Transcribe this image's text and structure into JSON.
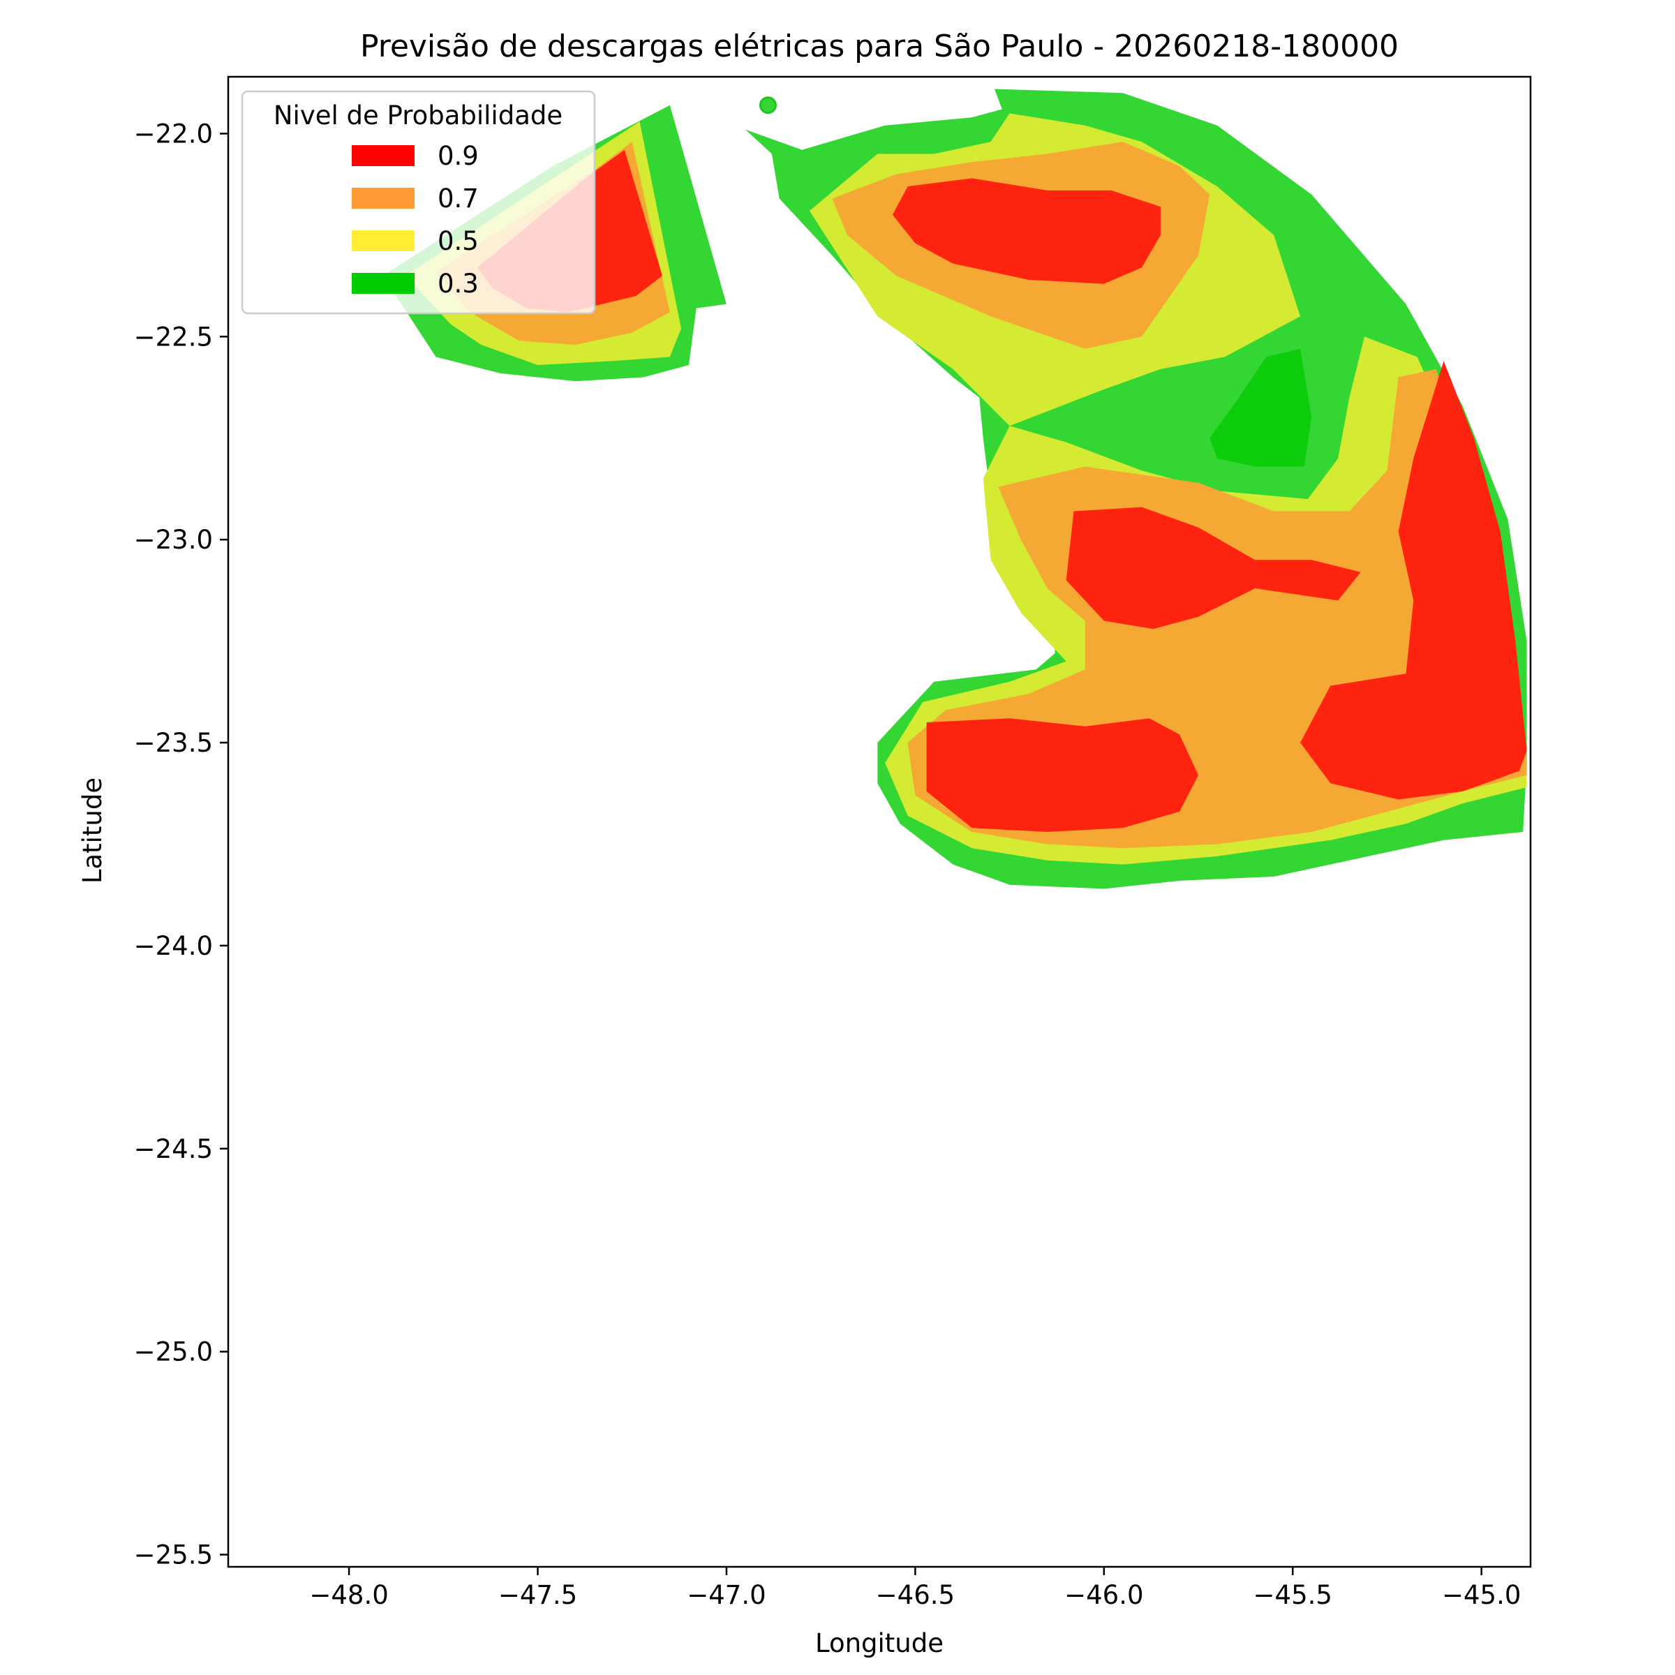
{
  "chart_data": {
    "type": "heatmap",
    "title": "Previsão de descargas elétricas para São Paulo - 20260218-180000",
    "xlabel": "Longitude",
    "ylabel": "Latitude",
    "xlim": [
      -48.32,
      -44.87
    ],
    "ylim": [
      -25.53,
      -21.86
    ],
    "x_ticks": [
      -48.0,
      -47.5,
      -47.0,
      -46.5,
      -46.0,
      -45.5,
      -45.0
    ],
    "x_tick_labels": [
      "−48.0",
      "−47.5",
      "−47.0",
      "−46.5",
      "−46.0",
      "−45.5",
      "−45.0"
    ],
    "y_ticks": [
      -22.0,
      -22.5,
      -23.0,
      -23.5,
      -24.0,
      -24.5,
      -25.0,
      -25.5
    ],
    "y_tick_labels": [
      "−22.0",
      "−22.5",
      "−23.0",
      "−23.5",
      "−24.0",
      "−24.5",
      "−25.0",
      "−25.5"
    ],
    "grid": false,
    "legend": {
      "title": "Nivel de Probabilidade",
      "placement": "upper-left",
      "entries": [
        {
          "label": "0.9",
          "color": "#ff0000"
        },
        {
          "label": "0.7",
          "color": "#ff9933"
        },
        {
          "label": "0.5",
          "color": "#ffee33"
        },
        {
          "label": "0.3",
          "color": "#00cc00"
        }
      ]
    },
    "fill_colors": {
      "0.3": "#33d633",
      "0.3_core": "#0ccc0c",
      "0.5": "#d4ea33",
      "0.7": "#f5a833",
      "0.9": "#ff2410"
    },
    "regions": [
      {
        "level": "0.3",
        "name": "nw-cell",
        "coords": [
          [
            -47.91,
            -22.35
          ],
          [
            -47.46,
            -22.08
          ],
          [
            -47.15,
            -21.93
          ],
          [
            -47.0,
            -22.42
          ],
          [
            -47.08,
            -22.43
          ],
          [
            -47.1,
            -22.57
          ],
          [
            -47.22,
            -22.6
          ],
          [
            -47.4,
            -22.61
          ],
          [
            -47.6,
            -22.59
          ],
          [
            -47.77,
            -22.55
          ]
        ]
      },
      {
        "level": "0.5",
        "name": "nw-cell",
        "coords": [
          [
            -47.85,
            -22.35
          ],
          [
            -47.41,
            -22.08
          ],
          [
            -47.23,
            -21.97
          ],
          [
            -47.12,
            -22.48
          ],
          [
            -47.15,
            -22.55
          ],
          [
            -47.3,
            -22.56
          ],
          [
            -47.5,
            -22.57
          ],
          [
            -47.65,
            -22.52
          ],
          [
            -47.73,
            -22.47
          ]
        ]
      },
      {
        "level": "0.7",
        "name": "nw-cell",
        "coords": [
          [
            -47.77,
            -22.34
          ],
          [
            -47.35,
            -22.09
          ],
          [
            -47.25,
            -22.02
          ],
          [
            -47.15,
            -22.44
          ],
          [
            -47.25,
            -22.49
          ],
          [
            -47.4,
            -22.52
          ],
          [
            -47.55,
            -22.51
          ],
          [
            -47.68,
            -22.44
          ]
        ]
      },
      {
        "level": "0.9",
        "name": "nw-cell",
        "coords": [
          [
            -47.66,
            -22.33
          ],
          [
            -47.36,
            -22.1
          ],
          [
            -47.27,
            -22.04
          ],
          [
            -47.17,
            -22.35
          ],
          [
            -47.24,
            -22.4
          ],
          [
            -47.42,
            -22.44
          ],
          [
            -47.53,
            -22.43
          ],
          [
            -47.62,
            -22.38
          ]
        ]
      },
      {
        "level": "0.3",
        "name": "e-cell",
        "coords": [
          [
            -46.95,
            -21.99
          ],
          [
            -46.8,
            -22.04
          ],
          [
            -46.58,
            -21.98
          ],
          [
            -46.35,
            -21.96
          ],
          [
            -46.27,
            -21.94
          ],
          [
            -46.29,
            -21.89
          ],
          [
            -45.95,
            -21.9
          ],
          [
            -45.7,
            -21.98
          ],
          [
            -45.45,
            -22.15
          ],
          [
            -45.2,
            -22.42
          ],
          [
            -45.05,
            -22.67
          ],
          [
            -44.93,
            -22.95
          ],
          [
            -44.88,
            -23.25
          ],
          [
            -44.88,
            -23.55
          ],
          [
            -44.89,
            -23.72
          ],
          [
            -45.1,
            -23.74
          ],
          [
            -45.3,
            -23.78
          ],
          [
            -45.55,
            -23.83
          ],
          [
            -45.8,
            -23.84
          ],
          [
            -46.0,
            -23.86
          ],
          [
            -46.25,
            -23.85
          ],
          [
            -46.4,
            -23.8
          ],
          [
            -46.54,
            -23.7
          ],
          [
            -46.6,
            -23.6
          ],
          [
            -46.6,
            -23.5
          ],
          [
            -46.45,
            -23.35
          ],
          [
            -46.18,
            -23.32
          ],
          [
            -46.13,
            -23.28
          ],
          [
            -46.13,
            -23.17
          ],
          [
            -46.2,
            -23.12
          ],
          [
            -46.25,
            -23.02
          ],
          [
            -46.3,
            -22.9
          ],
          [
            -46.32,
            -22.75
          ],
          [
            -46.33,
            -22.65
          ],
          [
            -46.4,
            -22.6
          ],
          [
            -46.58,
            -22.45
          ],
          [
            -46.72,
            -22.3
          ],
          [
            -46.86,
            -22.16
          ],
          [
            -46.88,
            -22.05
          ]
        ]
      },
      {
        "level": "0.5",
        "name": "e-cell",
        "coords": [
          [
            -46.78,
            -22.19
          ],
          [
            -46.6,
            -22.05
          ],
          [
            -46.45,
            -22.05
          ],
          [
            -46.3,
            -22.02
          ],
          [
            -46.25,
            -21.95
          ],
          [
            -46.05,
            -21.98
          ],
          [
            -45.9,
            -22.02
          ],
          [
            -45.7,
            -22.13
          ],
          [
            -45.55,
            -22.25
          ],
          [
            -45.48,
            -22.45
          ],
          [
            -45.68,
            -22.55
          ],
          [
            -45.85,
            -22.58
          ],
          [
            -46.0,
            -22.63
          ],
          [
            -46.25,
            -22.72
          ],
          [
            -46.32,
            -22.85
          ],
          [
            -46.3,
            -23.05
          ],
          [
            -46.22,
            -23.18
          ],
          [
            -46.1,
            -23.3
          ],
          [
            -46.25,
            -23.35
          ],
          [
            -46.48,
            -23.4
          ],
          [
            -46.58,
            -23.55
          ],
          [
            -46.52,
            -23.68
          ],
          [
            -46.35,
            -23.76
          ],
          [
            -46.15,
            -23.79
          ],
          [
            -45.95,
            -23.8
          ],
          [
            -45.7,
            -23.78
          ],
          [
            -45.4,
            -23.74
          ],
          [
            -45.2,
            -23.7
          ],
          [
            -45.05,
            -23.65
          ],
          [
            -44.88,
            -23.61
          ],
          [
            -44.88,
            -23.55
          ],
          [
            -44.92,
            -23.3
          ],
          [
            -44.98,
            -23.05
          ],
          [
            -45.05,
            -22.8
          ],
          [
            -45.17,
            -22.55
          ],
          [
            -45.31,
            -22.5
          ],
          [
            -45.35,
            -22.65
          ],
          [
            -45.38,
            -22.8
          ],
          [
            -45.46,
            -22.9
          ],
          [
            -45.7,
            -22.88
          ],
          [
            -45.9,
            -22.83
          ],
          [
            -46.1,
            -22.76
          ],
          [
            -46.25,
            -22.72
          ],
          [
            -46.4,
            -22.58
          ],
          [
            -46.6,
            -22.45
          ]
        ]
      },
      {
        "level": "0.7",
        "name": "e-cell",
        "coords": [
          [
            -46.72,
            -22.16
          ],
          [
            -46.55,
            -22.1
          ],
          [
            -46.35,
            -22.07
          ],
          [
            -46.15,
            -22.05
          ],
          [
            -45.95,
            -22.02
          ],
          [
            -45.8,
            -22.08
          ],
          [
            -45.72,
            -22.15
          ],
          [
            -45.75,
            -22.3
          ],
          [
            -45.9,
            -22.5
          ],
          [
            -46.05,
            -22.53
          ],
          [
            -46.3,
            -22.45
          ],
          [
            -46.55,
            -22.35
          ],
          [
            -46.68,
            -22.25
          ]
        ]
      },
      {
        "level": "0.7",
        "name": "e-cell",
        "coords": [
          [
            -46.28,
            -22.87
          ],
          [
            -46.05,
            -22.82
          ],
          [
            -45.75,
            -22.86
          ],
          [
            -45.55,
            -22.93
          ],
          [
            -45.35,
            -22.93
          ],
          [
            -45.25,
            -22.83
          ],
          [
            -45.22,
            -22.6
          ],
          [
            -45.12,
            -22.58
          ],
          [
            -45.05,
            -22.8
          ],
          [
            -44.97,
            -23.05
          ],
          [
            -44.91,
            -23.3
          ],
          [
            -44.88,
            -23.55
          ],
          [
            -44.88,
            -23.58
          ],
          [
            -45.05,
            -23.62
          ],
          [
            -45.25,
            -23.67
          ],
          [
            -45.45,
            -23.72
          ],
          [
            -45.7,
            -23.75
          ],
          [
            -45.95,
            -23.76
          ],
          [
            -46.15,
            -23.75
          ],
          [
            -46.35,
            -23.72
          ],
          [
            -46.5,
            -23.63
          ],
          [
            -46.52,
            -23.5
          ],
          [
            -46.42,
            -23.42
          ],
          [
            -46.2,
            -23.38
          ],
          [
            -46.05,
            -23.32
          ],
          [
            -46.05,
            -23.2
          ],
          [
            -46.15,
            -23.12
          ],
          [
            -46.22,
            -23.0
          ]
        ]
      },
      {
        "level": "0.9",
        "name": "e-cell",
        "coords": [
          [
            -46.56,
            -22.2
          ],
          [
            -46.52,
            -22.13
          ],
          [
            -46.35,
            -22.11
          ],
          [
            -46.15,
            -22.14
          ],
          [
            -45.98,
            -22.14
          ],
          [
            -45.85,
            -22.18
          ],
          [
            -45.85,
            -22.25
          ],
          [
            -45.9,
            -22.33
          ],
          [
            -46.0,
            -22.37
          ],
          [
            -46.2,
            -22.36
          ],
          [
            -46.4,
            -22.32
          ],
          [
            -46.5,
            -22.27
          ]
        ]
      },
      {
        "level": "0.9",
        "name": "e-cell",
        "coords": [
          [
            -46.08,
            -22.93
          ],
          [
            -45.9,
            -22.92
          ],
          [
            -45.75,
            -22.97
          ],
          [
            -45.6,
            -23.05
          ],
          [
            -45.45,
            -23.05
          ],
          [
            -45.32,
            -23.08
          ],
          [
            -45.38,
            -23.15
          ],
          [
            -45.6,
            -23.12
          ],
          [
            -45.75,
            -23.19
          ],
          [
            -45.87,
            -23.22
          ],
          [
            -46.0,
            -23.2
          ],
          [
            -46.1,
            -23.1
          ]
        ]
      },
      {
        "level": "0.9",
        "name": "e-cell",
        "coords": [
          [
            -46.47,
            -23.45
          ],
          [
            -46.25,
            -23.44
          ],
          [
            -46.05,
            -23.46
          ],
          [
            -45.88,
            -23.44
          ],
          [
            -45.8,
            -23.48
          ],
          [
            -45.75,
            -23.58
          ],
          [
            -45.8,
            -23.67
          ],
          [
            -45.95,
            -23.71
          ],
          [
            -46.15,
            -23.72
          ],
          [
            -46.35,
            -23.71
          ],
          [
            -46.47,
            -23.62
          ]
        ]
      },
      {
        "level": "0.9",
        "name": "e-cell",
        "coords": [
          [
            -45.1,
            -22.56
          ],
          [
            -45.02,
            -22.75
          ],
          [
            -44.95,
            -22.98
          ],
          [
            -44.91,
            -23.25
          ],
          [
            -44.88,
            -23.52
          ],
          [
            -44.9,
            -23.57
          ],
          [
            -45.05,
            -23.62
          ],
          [
            -45.22,
            -23.64
          ],
          [
            -45.4,
            -23.6
          ],
          [
            -45.48,
            -23.5
          ],
          [
            -45.4,
            -23.36
          ],
          [
            -45.2,
            -23.33
          ],
          [
            -45.18,
            -23.15
          ],
          [
            -45.22,
            -22.98
          ],
          [
            -45.18,
            -22.8
          ]
        ]
      },
      {
        "level": "0.3_core",
        "name": "e-cell",
        "coords": [
          [
            -45.72,
            -22.75
          ],
          [
            -45.65,
            -22.66
          ],
          [
            -45.57,
            -22.55
          ],
          [
            -45.48,
            -22.53
          ],
          [
            -45.45,
            -22.7
          ],
          [
            -45.47,
            -22.82
          ],
          [
            -45.6,
            -22.82
          ],
          [
            -45.7,
            -22.8
          ]
        ]
      }
    ],
    "markers": [
      {
        "name": "isolated-cell",
        "level": "0.3",
        "x": -46.89,
        "y": -21.93
      }
    ]
  }
}
